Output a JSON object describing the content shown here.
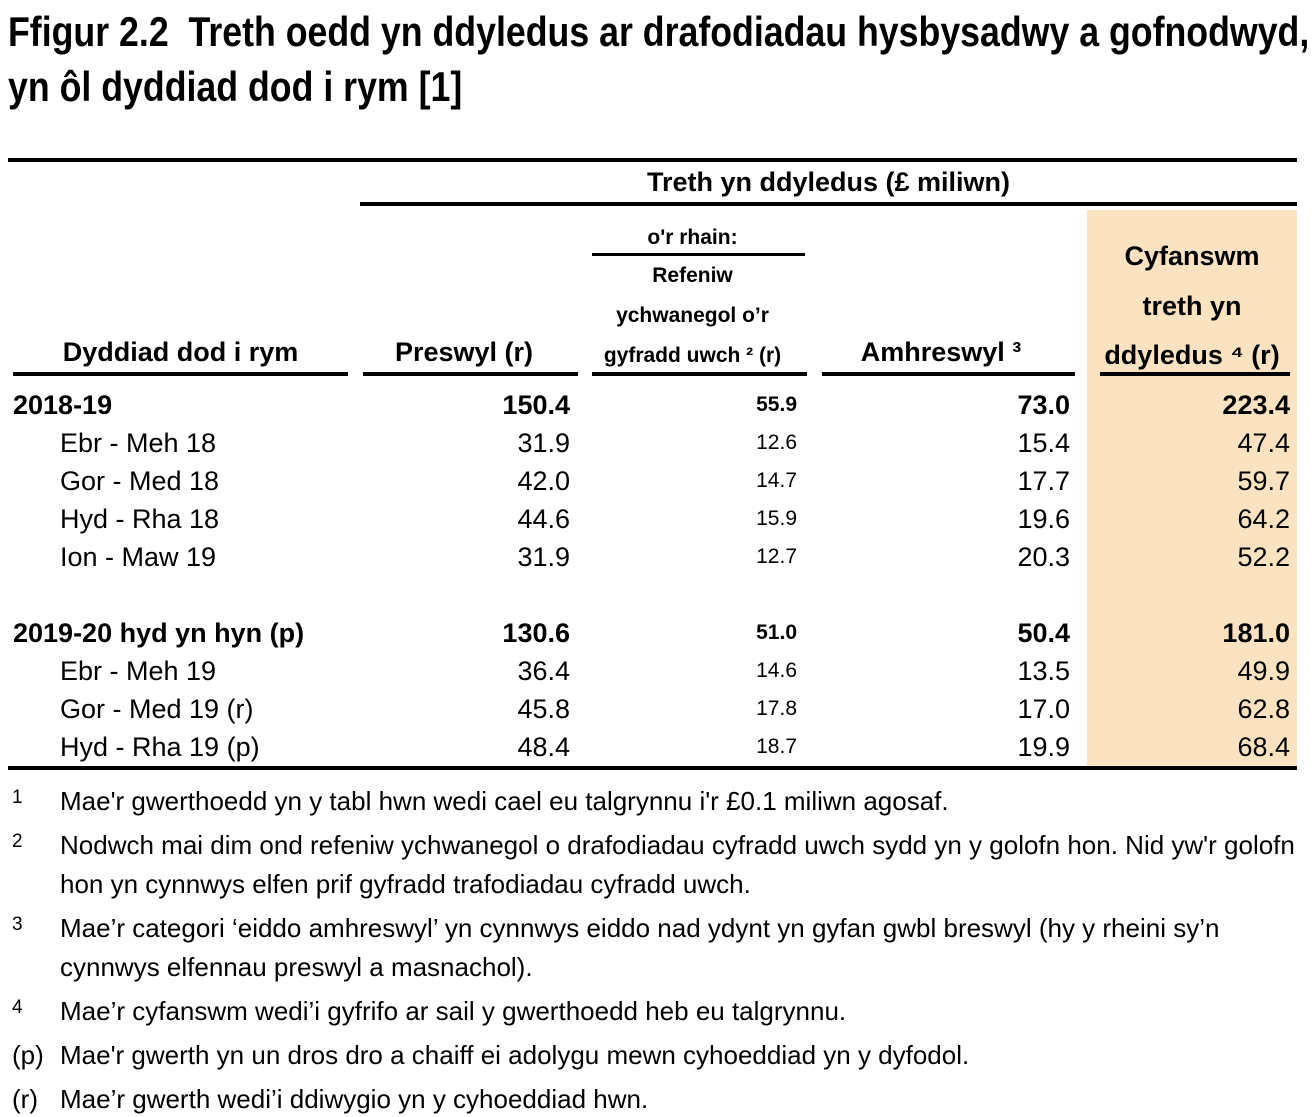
{
  "title": "Ffigur 2.2  Treth oedd yn ddyledus ar drafodiadau hysbysadwy a gofnodwyd, yn ôl dyddiad dod i rym [1]",
  "table": {
    "group_header": "Treth yn ddyledus (£ miliwn)",
    "columns": {
      "date_label": "Dyddiad dod i rym",
      "residential_label": "Preswyl (r)",
      "of_which_label": "o'r rhain:",
      "higher_rate_line1": "Refeniw",
      "higher_rate_line2": "ychwanegol o’r",
      "higher_rate_line3": "gyfradd uwch ² (r)",
      "non_residential_label": "Amhreswyl ³",
      "total_line1": "Cyfanswm",
      "total_line2": "treth yn",
      "total_line3": "ddyledus ⁴ (r)"
    },
    "rows": [
      {
        "label": "2018-19",
        "bold": true,
        "indent": false,
        "residential": "150.4",
        "higher_rate": "55.9",
        "non_residential": "73.0",
        "total": "223.4"
      },
      {
        "label": "Ebr - Meh 18",
        "bold": false,
        "indent": true,
        "residential": "31.9",
        "higher_rate": "12.6",
        "non_residential": "15.4",
        "total": "47.4"
      },
      {
        "label": "Gor - Med 18",
        "bold": false,
        "indent": true,
        "residential": "42.0",
        "higher_rate": "14.7",
        "non_residential": "17.7",
        "total": "59.7"
      },
      {
        "label": "Hyd - Rha 18",
        "bold": false,
        "indent": true,
        "residential": "44.6",
        "higher_rate": "15.9",
        "non_residential": "19.6",
        "total": "64.2"
      },
      {
        "label": "Ion - Maw 19",
        "bold": false,
        "indent": true,
        "residential": "31.9",
        "higher_rate": "12.7",
        "non_residential": "20.3",
        "total": "52.2"
      },
      {
        "spacer": true
      },
      {
        "label": "2019-20 hyd yn hyn (p)",
        "bold": true,
        "indent": false,
        "residential": "130.6",
        "higher_rate": "51.0",
        "non_residential": "50.4",
        "total": "181.0"
      },
      {
        "label": "Ebr - Meh 19",
        "bold": false,
        "indent": true,
        "residential": "36.4",
        "higher_rate": "14.6",
        "non_residential": "13.5",
        "total": "49.9"
      },
      {
        "label": "Gor - Med 19 (r)",
        "bold": false,
        "indent": true,
        "residential": "45.8",
        "higher_rate": "17.8",
        "non_residential": "17.0",
        "total": "62.8"
      },
      {
        "label": "Hyd - Rha 19 (p)",
        "bold": false,
        "indent": true,
        "residential": "48.4",
        "higher_rate": "18.7",
        "non_residential": "19.9",
        "total": "68.4"
      }
    ]
  },
  "footnotes": [
    {
      "marker": "1",
      "sup": true,
      "text": "Mae'r gwerthoedd yn y tabl hwn wedi cael eu talgrynnu i'r £0.1 miliwn agosaf."
    },
    {
      "marker": "2",
      "sup": true,
      "text": "Nodwch mai dim ond refeniw ychwanegol o drafodiadau cyfradd uwch sydd yn y golofn hon. Nid yw'r golofn hon yn cynnwys elfen prif gyfradd trafodiadau cyfradd uwch."
    },
    {
      "marker": "3",
      "sup": true,
      "text": "Mae’r categori ‘eiddo amhreswyl’ yn cynnwys eiddo nad ydynt yn gyfan gwbl breswyl (hy y rheini sy’n cynnwys elfennau preswyl a masnachol)."
    },
    {
      "marker": "4",
      "sup": true,
      "text": "Mae’r cyfanswm wedi’i gyfrifo ar sail y gwerthoedd heb eu talgrynnu."
    },
    {
      "marker": "(p)",
      "sup": false,
      "text": "Mae'r gwerth yn un dros dro a chaiff ei adolygu mewn cyhoeddiad yn y dyfodol."
    },
    {
      "marker": "(r)",
      "sup": false,
      "text": "Mae’r gwerth wedi’i ddiwygio yn y cyhoeddiad hwn."
    }
  ],
  "colors": {
    "highlight": "#FBE3C1",
    "text": "#000000",
    "rule": "#000000"
  }
}
